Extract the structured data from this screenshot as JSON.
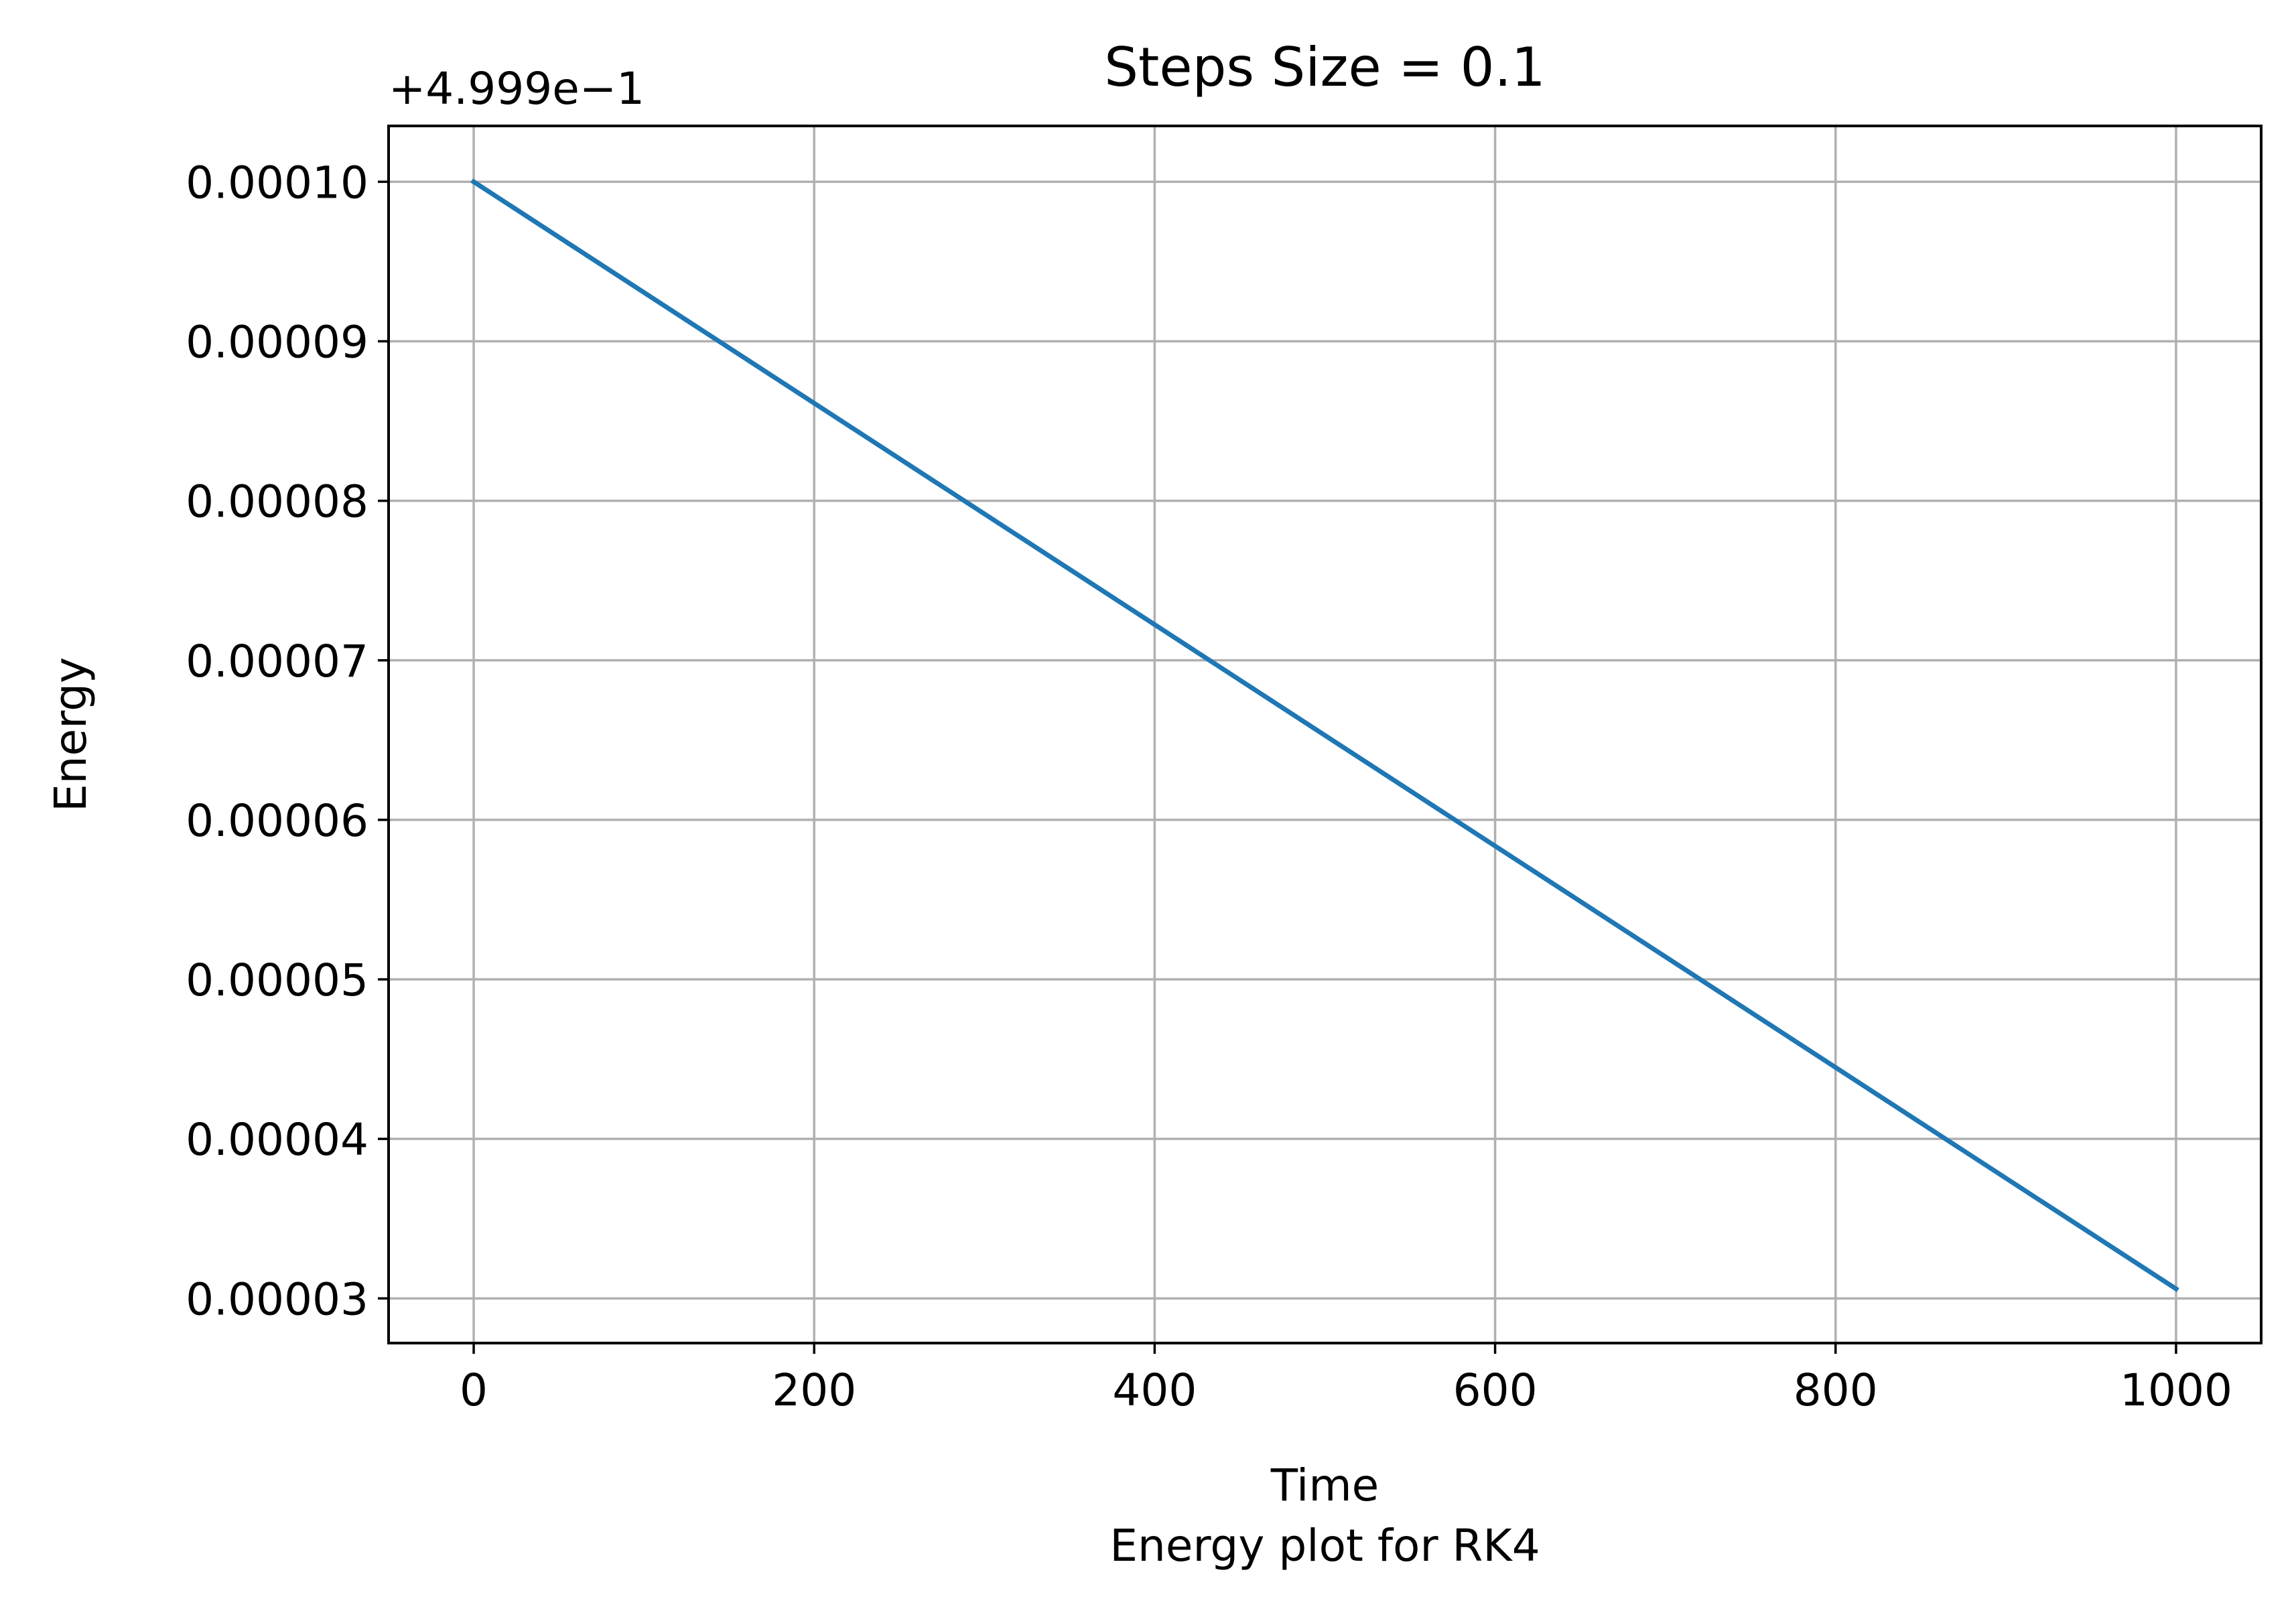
{
  "chart_data": {
    "type": "line",
    "title": "Steps Size = 0.1",
    "xlabel": "Time",
    "caption": "Energy plot for RK4",
    "ylabel": "Energy",
    "y_offset_label": "+4.999e−1",
    "xlim": [
      -50,
      1050
    ],
    "ylim": [
      2.72e-05,
      0.0001035
    ],
    "x_ticks": [
      0,
      200,
      400,
      600,
      800,
      1000
    ],
    "x_tick_labels": [
      "0",
      "200",
      "400",
      "600",
      "800",
      "1000"
    ],
    "y_ticks": [
      3e-05,
      4e-05,
      5e-05,
      6e-05,
      7e-05,
      8e-05,
      9e-05,
      0.0001
    ],
    "y_tick_labels": [
      "0.00003",
      "0.00004",
      "0.00005",
      "0.00006",
      "0.00007",
      "0.00008",
      "0.00009",
      "0.00010"
    ],
    "grid": true,
    "series": [
      {
        "color": "#1f77b4",
        "x": [
          0,
          1000
        ],
        "y": [
          0.0001,
          3.06e-05
        ]
      }
    ]
  }
}
